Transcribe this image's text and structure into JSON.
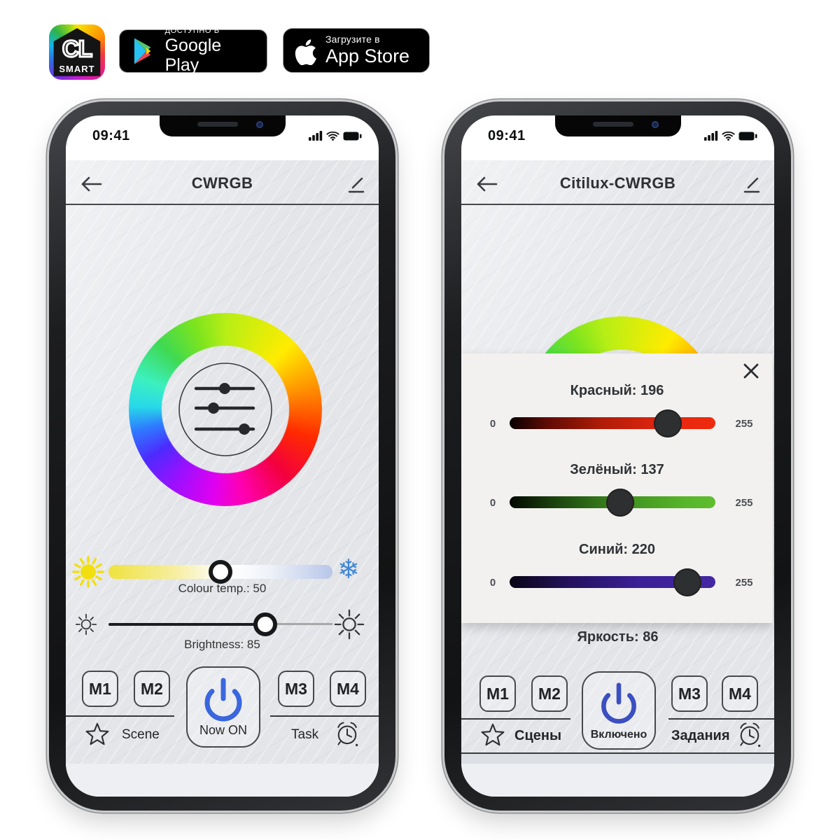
{
  "badges": {
    "cl_logo": {
      "text_main": "CL",
      "text_sub": "SMART"
    },
    "google_play": {
      "tagline": "ДОСТУПНО В",
      "store": "Google Play"
    },
    "app_store": {
      "tagline": "Загрузите в",
      "store": "App Store"
    }
  },
  "status": {
    "time": "09:41"
  },
  "left_phone": {
    "title": "CWRGB",
    "colour_temp": {
      "label": "Colour temp.: 50",
      "value": 50
    },
    "brightness": {
      "label": "Brightness: 85",
      "value": 85
    },
    "memory_buttons": [
      "M1",
      "M2",
      "M3",
      "M4"
    ],
    "power_label": "Now ON",
    "scene_label": "Scene",
    "task_label": "Task"
  },
  "right_phone": {
    "title": "Citilux-CWRGB",
    "rgb_sliders": [
      {
        "label": "Красный: 196",
        "value": 196,
        "min_label": "0",
        "max_label": "255",
        "channel": "red"
      },
      {
        "label": "Зелёный: 137",
        "value": 137,
        "min_label": "0",
        "max_label": "255",
        "channel": "green"
      },
      {
        "label": "Синий: 220",
        "value": 220,
        "min_label": "0",
        "max_label": "255",
        "channel": "blue"
      }
    ],
    "brightness_label": "Яркость: 86",
    "memory_buttons": [
      "M1",
      "M2",
      "M3",
      "M4"
    ],
    "power_label": "Включено",
    "scene_label": "Сцены",
    "task_label": "Задания"
  },
  "icons": {
    "snowflake_char": "❄"
  },
  "colors": {
    "power_icon_left": "#3a66de",
    "power_icon_right": "#3b4fc0",
    "snowflake": "#3f87d6",
    "sun_yellow": "#f2df10",
    "app_background": "#e3e5e9",
    "modal_background": "#f2f1ef"
  }
}
